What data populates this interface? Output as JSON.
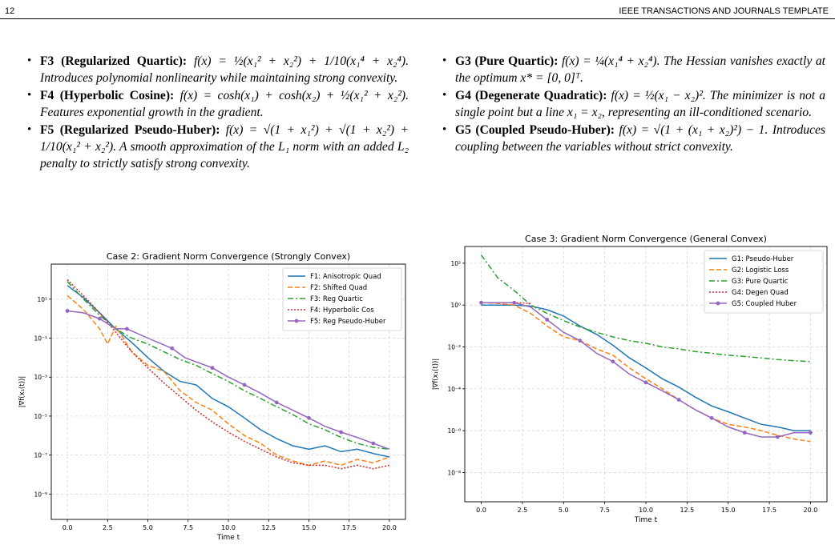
{
  "header": {
    "page_number": "12",
    "journal_title": "IEEE TRANSACTIONS AND JOURNALS TEMPLATE"
  },
  "left_column": {
    "items": [
      {
        "label": "F3 (Regularized Quartic):",
        "text": "f(x) = ½(x₁² + x₂²) + 1/10(x₁⁴ + x₂⁴). Introduces polynomial nonlinearity while maintaining strong convexity."
      },
      {
        "label": "F4 (Hyperbolic Cosine):",
        "text": "f(x) = cosh(x₁) + cosh(x₂) + ½(x₁² + x₂²). Features exponential growth in the gradient."
      },
      {
        "label": "F5 (Regularized Pseudo-Huber):",
        "text": "f(x) = √(1 + x₁²) + √(1 + x₂²) + 1/10(x₁² + x₂²). A smooth approximation of the L₁ norm with an added L₂ penalty to strictly satisfy strong convexity."
      }
    ]
  },
  "right_column": {
    "items": [
      {
        "label": "G3 (Pure Quartic):",
        "text": "f(x) = ¼(x₁⁴ + x₂⁴). The Hessian vanishes exactly at the optimum x* = [0, 0]ᵀ."
      },
      {
        "label": "G4 (Degenerate Quadratic):",
        "text": "f(x) = ½(x₁ − x₂)². The minimizer is not a single point but a line x₁ = x₂, representing an ill-conditioned scenario."
      },
      {
        "label": "G5 (Coupled Pseudo-Huber):",
        "text": "f(x) = √(1 + (x₁ + x₂)²) − 1. Introduces coupling between the variables without strict convexity."
      }
    ]
  },
  "chart_data": [
    {
      "type": "line",
      "title": "Case 2: Gradient Norm Convergence (Strongly Convex)",
      "xlabel": "Time t",
      "ylabel": "|∇f(x₁(t))|",
      "xlim": [
        -1,
        21
      ],
      "ylim_log10": [
        -10.3,
        2.8
      ],
      "y_scale": "log",
      "grid": true,
      "legend_position": "top-right",
      "x_ticks": [
        "0.0",
        "2.5",
        "5.0",
        "7.5",
        "10.0",
        "12.5",
        "15.0",
        "17.5",
        "20.0"
      ],
      "y_ticks": [
        {
          "label": "10¹",
          "log10": 1
        },
        {
          "label": "10⁻¹",
          "log10": -1
        },
        {
          "label": "10⁻³",
          "log10": -3
        },
        {
          "label": "10⁻⁵",
          "log10": -5
        },
        {
          "label": "10⁻⁷",
          "log10": -7
        },
        {
          "label": "10⁻⁹",
          "log10": -9
        }
      ],
      "series": [
        {
          "name": "F1: Anisotropic Quad",
          "color": "#1f77b4",
          "dash": "solid",
          "points": [
            [
              0,
              50
            ],
            [
              1,
              12
            ],
            [
              2,
              2
            ],
            [
              3,
              0.3
            ],
            [
              4,
              0.06
            ],
            [
              5,
              0.01
            ],
            [
              6,
              0.002
            ],
            [
              7,
              0.0006
            ],
            [
              8,
              0.0004
            ],
            [
              9,
              8e-05
            ],
            [
              10,
              3e-05
            ],
            [
              11,
              8e-06
            ],
            [
              12,
              2e-06
            ],
            [
              13,
              7e-07
            ],
            [
              14,
              3e-07
            ],
            [
              15,
              2e-07
            ],
            [
              16,
              3e-07
            ],
            [
              17,
              1.5e-07
            ],
            [
              18,
              2e-07
            ],
            [
              19,
              1.2e-07
            ],
            [
              20,
              8e-08
            ]
          ]
        },
        {
          "name": "F2: Shifted Quad",
          "color": "#ff7f0e",
          "dash": "dashed",
          "points": [
            [
              0,
              15
            ],
            [
              1,
              3
            ],
            [
              2,
              0.3
            ],
            [
              2.5,
              0.05
            ],
            [
              3,
              0.4
            ],
            [
              4,
              0.02
            ],
            [
              5,
              0.004
            ],
            [
              6,
              0.002
            ],
            [
              7,
              0.0002
            ],
            [
              8,
              5e-05
            ],
            [
              9,
              2e-05
            ],
            [
              10,
              4e-06
            ],
            [
              11,
              1e-06
            ],
            [
              12,
              4e-07
            ],
            [
              13,
              1e-07
            ],
            [
              14,
              5e-08
            ],
            [
              15,
              3e-08
            ],
            [
              16,
              5e-08
            ],
            [
              17,
              3e-08
            ],
            [
              18,
              6e-08
            ],
            [
              19,
              4e-08
            ],
            [
              20,
              8e-08
            ]
          ]
        },
        {
          "name": "F3: Reg Quartic",
          "color": "#2ca02c",
          "dash": "dashdot",
          "points": [
            [
              0,
              80
            ],
            [
              1,
              10
            ],
            [
              2,
              1.5
            ],
            [
              3,
              0.3
            ],
            [
              4,
              0.1
            ],
            [
              5,
              0.05
            ],
            [
              6,
              0.02
            ],
            [
              7,
              0.008
            ],
            [
              8,
              0.004
            ],
            [
              9,
              0.0015
            ],
            [
              10,
              0.0006
            ],
            [
              11,
              0.0002
            ],
            [
              12,
              8e-05
            ],
            [
              13,
              3e-05
            ],
            [
              14,
              1.2e-05
            ],
            [
              15,
              4e-06
            ],
            [
              16,
              2e-06
            ],
            [
              17,
              8e-07
            ],
            [
              18,
              4e-07
            ],
            [
              19,
              2.5e-07
            ],
            [
              20,
              2e-07
            ]
          ]
        },
        {
          "name": "F4: Hyperbolic Cos",
          "color": "#d62728",
          "dash": "dotted",
          "points": [
            [
              0,
              100
            ],
            [
              1,
              15
            ],
            [
              2,
              2
            ],
            [
              3,
              0.2
            ],
            [
              4,
              0.02
            ],
            [
              5,
              0.003
            ],
            [
              6,
              0.0005
            ],
            [
              7,
              0.0001
            ],
            [
              8,
              2e-05
            ],
            [
              9,
              5e-06
            ],
            [
              10,
              1.5e-06
            ],
            [
              11,
              5e-07
            ],
            [
              12,
              2e-07
            ],
            [
              13,
              8e-08
            ],
            [
              14,
              4e-08
            ],
            [
              15,
              3e-08
            ],
            [
              16,
              3e-08
            ],
            [
              17,
              2e-08
            ],
            [
              18,
              3e-08
            ],
            [
              19,
              2e-08
            ],
            [
              20,
              3e-08
            ]
          ]
        },
        {
          "name": "F5: Reg Pseudo-Huber",
          "color": "#9467bd",
          "dash": "solid",
          "marker": "circle",
          "points": [
            [
              0,
              2.5
            ],
            [
              1,
              2
            ],
            [
              2,
              1
            ],
            [
              3,
              0.3
            ],
            [
              3.7,
              0.3
            ],
            [
              5,
              0.1
            ],
            [
              6.5,
              0.03
            ],
            [
              7.3,
              0.01
            ],
            [
              9,
              0.003
            ],
            [
              10,
              0.001
            ],
            [
              11,
              0.0004
            ],
            [
              12,
              0.00015
            ],
            [
              13,
              5e-05
            ],
            [
              14,
              2e-05
            ],
            [
              15,
              8e-06
            ],
            [
              16,
              3e-06
            ],
            [
              17,
              1.5e-06
            ],
            [
              18,
              8e-07
            ],
            [
              19,
              4e-07
            ],
            [
              20,
              2e-07
            ]
          ]
        }
      ]
    },
    {
      "type": "line",
      "title": "Case 3: Gradient Norm Convergence (General Convex)",
      "xlabel": "Time t",
      "ylabel": "|∇f(x₁(t))|",
      "xlim": [
        -1,
        21
      ],
      "ylim_log10": [
        -9.4,
        2.8
      ],
      "y_scale": "log",
      "grid": true,
      "legend_position": "top-right",
      "x_ticks": [
        "0.0",
        "2.5",
        "5.0",
        "7.5",
        "10.0",
        "12.5",
        "15.0",
        "17.5",
        "20.0"
      ],
      "y_ticks": [
        {
          "label": "10²",
          "log10": 2
        },
        {
          "label": "10⁰",
          "log10": 0
        },
        {
          "label": "10⁻²",
          "log10": -2
        },
        {
          "label": "10⁻⁴",
          "log10": -4
        },
        {
          "label": "10⁻⁶",
          "log10": -6
        },
        {
          "label": "10⁻⁸",
          "log10": -8
        }
      ],
      "series": [
        {
          "name": "G1: Pseudo-Huber",
          "color": "#1f77b4",
          "dash": "solid",
          "points": [
            [
              0,
              1
            ],
            [
              1,
              1
            ],
            [
              2,
              1
            ],
            [
              3,
              0.9
            ],
            [
              4,
              0.6
            ],
            [
              5,
              0.3
            ],
            [
              6,
              0.1
            ],
            [
              7,
              0.04
            ],
            [
              8,
              0.012
            ],
            [
              9,
              0.003
            ],
            [
              10,
              0.001
            ],
            [
              11,
              0.0003
            ],
            [
              12,
              0.00012
            ],
            [
              13,
              4e-05
            ],
            [
              14,
              1.5e-05
            ],
            [
              15,
              8e-06
            ],
            [
              16,
              4e-06
            ],
            [
              17,
              2e-06
            ],
            [
              18,
              1.5e-06
            ],
            [
              19,
              1e-06
            ],
            [
              20,
              1e-06
            ]
          ]
        },
        {
          "name": "G2: Logistic Loss",
          "color": "#ff7f0e",
          "dash": "dashed",
          "points": [
            [
              0,
              1.3
            ],
            [
              1,
              1.2
            ],
            [
              2,
              1
            ],
            [
              3,
              0.4
            ],
            [
              4,
              0.1
            ],
            [
              5,
              0.03
            ],
            [
              6,
              0.02
            ],
            [
              7,
              0.008
            ],
            [
              8,
              0.004
            ],
            [
              9,
              0.001
            ],
            [
              10,
              0.0003
            ],
            [
              11,
              0.0001
            ],
            [
              12,
              3e-05
            ],
            [
              13,
              1e-05
            ],
            [
              14,
              4e-06
            ],
            [
              15,
              2e-06
            ],
            [
              16,
              1.5e-06
            ],
            [
              17,
              1e-06
            ],
            [
              18,
              6e-07
            ],
            [
              19,
              4e-07
            ],
            [
              20,
              3e-07
            ]
          ]
        },
        {
          "name": "G3: Pure Quartic",
          "color": "#2ca02c",
          "dash": "dashdot",
          "points": [
            [
              0,
              250
            ],
            [
              1,
              20
            ],
            [
              2,
              5
            ],
            [
              3,
              1
            ],
            [
              4,
              0.4
            ],
            [
              5,
              0.18
            ],
            [
              6,
              0.09
            ],
            [
              7,
              0.05
            ],
            [
              8,
              0.03
            ],
            [
              9,
              0.02
            ],
            [
              10,
              0.015
            ],
            [
              11,
              0.01
            ],
            [
              12,
              0.008
            ],
            [
              13,
              0.006
            ],
            [
              14,
              0.005
            ],
            [
              15,
              0.004
            ],
            [
              16,
              0.0035
            ],
            [
              17,
              0.003
            ],
            [
              18,
              0.0025
            ],
            [
              19,
              0.0022
            ],
            [
              20,
              0.002
            ]
          ]
        },
        {
          "name": "G4: Degen Quad",
          "color": "#d62728",
          "dash": "dotted",
          "points": [
            [
              0,
              1.3
            ],
            [
              1,
              1.3
            ],
            [
              2,
              1.3
            ],
            [
              3,
              1.2
            ]
          ]
        },
        {
          "name": "G5: Coupled Huber",
          "color": "#9467bd",
          "dash": "solid",
          "marker": "circle",
          "points": [
            [
              0,
              1.3
            ],
            [
              1,
              1.3
            ],
            [
              2,
              1.3
            ],
            [
              3,
              0.8
            ],
            [
              4,
              0.2
            ],
            [
              5,
              0.05
            ],
            [
              6,
              0.02
            ],
            [
              7,
              0.005
            ],
            [
              8,
              0.002
            ],
            [
              9,
              0.0005
            ],
            [
              10,
              0.0002
            ],
            [
              11,
              8e-05
            ],
            [
              12,
              3e-05
            ],
            [
              13,
              1e-05
            ],
            [
              14,
              4e-06
            ],
            [
              15,
              1.5e-06
            ],
            [
              16,
              8e-07
            ],
            [
              17,
              5e-07
            ],
            [
              18,
              5e-07
            ],
            [
              19,
              8e-07
            ],
            [
              20,
              8e-07
            ]
          ]
        }
      ]
    }
  ]
}
